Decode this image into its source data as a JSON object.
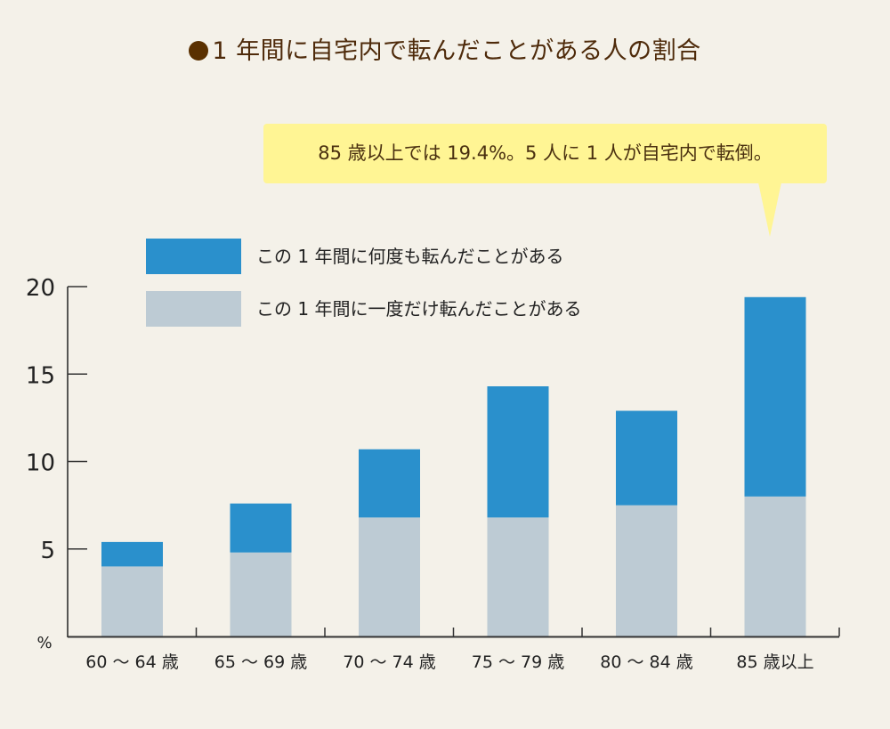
{
  "title": "1 年間に自宅内で転んだことがある人の割合",
  "callout": "85 歳以上では 19.4%。5 人に 1 人が自宅内で転倒。",
  "colors": {
    "many_times": "#2a90cc",
    "once": "#bdcbd4",
    "title_dot": "#5a3000",
    "callout_bg": "#fff594"
  },
  "chart_data": {
    "type": "bar",
    "stacked": true,
    "title": "1 年間に自宅内で転んだことがある人の割合",
    "xlabel": "",
    "ylabel": "%",
    "ylim": [
      0,
      20
    ],
    "yticks": [
      "5",
      "10",
      "15",
      "20"
    ],
    "grid": false,
    "legend_position": "top-left",
    "categories": [
      "60 ～ 64 歳",
      "65 ～ 69 歳",
      "70 ～ 74 歳",
      "75 ～ 79 歳",
      "80 ～ 84 歳",
      "85 歳以上"
    ],
    "series": [
      {
        "name": "この 1 年間に一度だけ転んだことがある",
        "values": [
          4.0,
          4.8,
          6.8,
          6.8,
          7.5,
          8.0
        ]
      },
      {
        "name": "この 1 年間に何度も転んだことがある",
        "values": [
          1.4,
          2.8,
          3.9,
          7.5,
          5.4,
          11.4
        ]
      }
    ],
    "totals": [
      5.4,
      7.6,
      10.7,
      14.3,
      12.9,
      19.4
    ]
  }
}
